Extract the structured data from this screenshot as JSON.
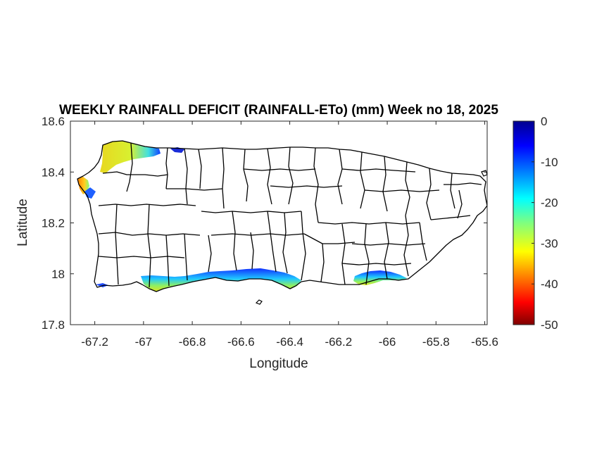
{
  "title": "WEEKLY RAINFALL DEFICIT (RAINFALL-ETo) (mm) Week no 18, 2025",
  "x_axis": {
    "label": "Longitude",
    "range": [
      -67.3,
      -65.59
    ],
    "ticks": [
      "-67.2",
      "-67",
      "-66.8",
      "-66.6",
      "-66.4",
      "-66.2",
      "-66",
      "-65.8",
      "-65.6"
    ]
  },
  "y_axis": {
    "label": "Latitude",
    "range": [
      17.8,
      18.6
    ],
    "ticks": [
      "18.6",
      "18.4",
      "18.2",
      "18",
      "17.8"
    ]
  },
  "colorbar": {
    "colormap": "jet",
    "range": [
      -50,
      0
    ],
    "ticks": [
      "0",
      "-10",
      "-20",
      "-30",
      "-40",
      "-50"
    ]
  },
  "map": {
    "region": "Puerto Rico municipalities",
    "outline_color": "#000000",
    "deficit_areas": [
      {
        "area": "northwest coast (Aguadilla / Isabela)",
        "min_mm": -33,
        "max_mm": -2
      },
      {
        "area": "west coast (Rincon)",
        "min_mm": -35,
        "max_mm": -8
      },
      {
        "area": "south coast (Guanica to Salinas)",
        "min_mm": -28,
        "max_mm": -4
      },
      {
        "area": "southeast coast (Guayama / Arroyo / Patillas)",
        "min_mm": -26,
        "max_mm": -2
      }
    ]
  }
}
